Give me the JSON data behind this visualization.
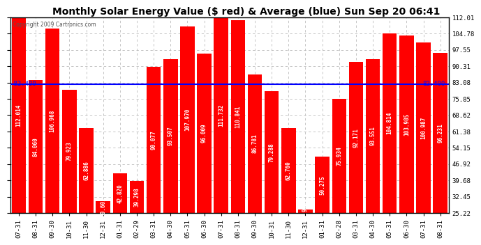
{
  "title": "Monthly Solar Energy Value ($ red) & Average (blue) Sun Sep 20 06:41",
  "copyright": "Copyright 2009 Cartronics.com",
  "categories": [
    "07-31",
    "08-31",
    "09-30",
    "10-31",
    "11-30",
    "12-31",
    "01-31",
    "02-29",
    "03-31",
    "04-30",
    "05-31",
    "06-30",
    "07-31",
    "08-31",
    "09-30",
    "10-31",
    "11-30",
    "12-31",
    "01-31",
    "02-28",
    "03-31",
    "04-30",
    "05-31",
    "06-30",
    "07-31",
    "08-31"
  ],
  "values": [
    112.014,
    84.06,
    106.968,
    79.923,
    62.886,
    30.601,
    42.82,
    39.298,
    90.077,
    93.507,
    107.97,
    96.009,
    111.732,
    110.841,
    86.781,
    79.288,
    62.76,
    26.918,
    50.275,
    75.934,
    92.171,
    93.551,
    104.814,
    103.985,
    100.987,
    96.231
  ],
  "average": 82.4,
  "bar_color": "#FF0000",
  "avg_line_color": "#0000FF",
  "background_color": "#FFFFFF",
  "plot_bg_color": "#FFFFFF",
  "grid_color": "#BBBBBB",
  "title_fontsize": 10,
  "bar_label_fontsize": 5.5,
  "ylabel_right": [
    "112.01",
    "104.78",
    "97.55",
    "90.31",
    "83.08",
    "75.85",
    "68.62",
    "61.38",
    "54.15",
    "46.92",
    "39.68",
    "32.45",
    "25.22"
  ],
  "ymin": 25.22,
  "ymax": 112.01,
  "avg_label": "82.400",
  "bar_text_color": "#FFFFFF"
}
